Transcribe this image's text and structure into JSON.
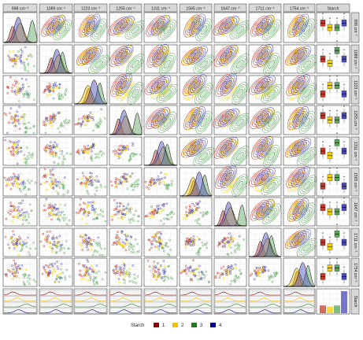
{
  "chart_data": {
    "type": "scatter",
    "variables": [
      "998 cm⁻¹",
      "1089 cm⁻¹",
      "1223 cm⁻¹",
      "1255 cm⁻¹",
      "1311 cm⁻¹",
      "1565 cm⁻¹",
      "1647 cm⁻¹",
      "1711 cm⁻¹",
      "1754 cm⁻¹"
    ],
    "extra_column": "Starch",
    "legend": {
      "title": "Starch",
      "placement": "bottom",
      "entries": [
        {
          "label": "1",
          "color": "#8b0000"
        },
        {
          "label": "2",
          "color": "#f2c200"
        },
        {
          "label": "3",
          "color": "#1e7b1e"
        },
        {
          "label": "4",
          "color": "#00008b"
        }
      ]
    },
    "upper_panels": "density contours",
    "lower_panels": "scatter",
    "diagonal_panels": "density",
    "starch_column": "boxplots",
    "starch_row": "histograms",
    "starch_counts": [
      0.35,
      0.3,
      0.35,
      1.0
    ],
    "grid": true
  }
}
